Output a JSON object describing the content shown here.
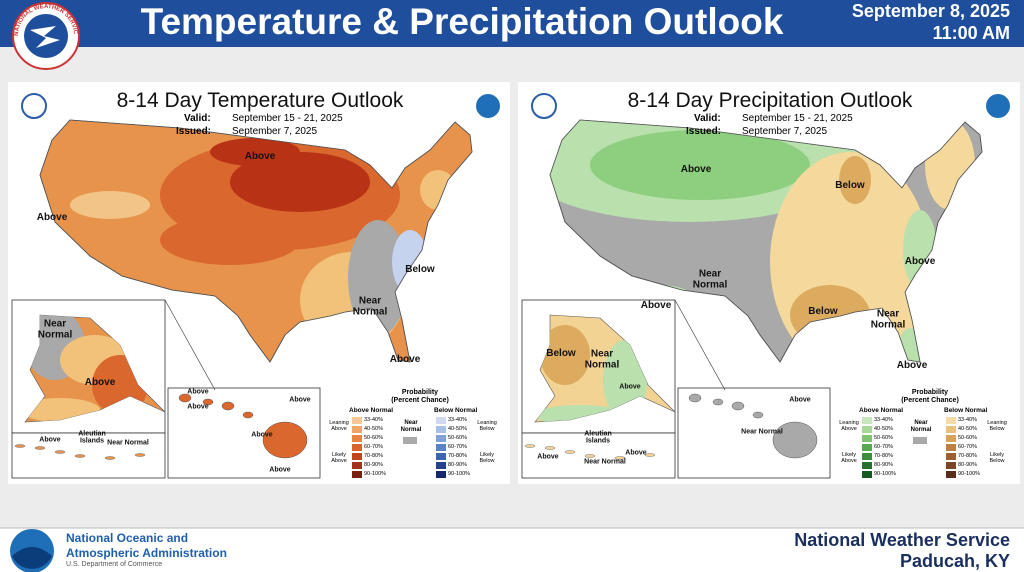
{
  "header": {
    "logo_text": "NATIONAL WEATHER SERVICE",
    "title": "Temperature & Precipitation Outlook",
    "date": "September 8, 2025",
    "time": "11:00 AM"
  },
  "maps": [
    {
      "title": "8-14 Day Temperature Outlook",
      "valid_label": "Valid:",
      "valid": "September 15 - 21, 2025",
      "issued_label": "Issued:",
      "issued": "September 7, 2025",
      "labels": [
        "Above",
        "Above",
        "Below",
        "Near Normal",
        "Above",
        "Near Normal",
        "Above",
        "Above",
        "Above",
        "Above",
        "Above",
        "Above",
        "Aleutian Islands",
        "Above",
        "Near Normal"
      ],
      "legend": {
        "title": "Probability (Percent Chance)",
        "above": "Above Normal",
        "below": "Below Normal",
        "near": "Near Normal",
        "leaning_above": "Leaning Above",
        "likely_above": "Likely Above",
        "leaning_below": "Leaning Below",
        "likely_below": "Likely Below",
        "ranges": [
          "33-40%",
          "40-50%",
          "50-60%",
          "60-70%",
          "70-80%",
          "80-90%",
          "90-100%"
        ]
      }
    },
    {
      "title": "8-14 Day Precipitation Outlook",
      "valid_label": "Valid:",
      "valid": "September 15 - 21, 2025",
      "issued_label": "Issued:",
      "issued": "September 7, 2025",
      "labels": [
        "Above",
        "Below",
        "Above",
        "Near Normal",
        "Above",
        "Below",
        "Near Normal",
        "Above",
        "Below",
        "Near Normal",
        "Above",
        "Above",
        "Near Normal",
        "Aleutian Islands",
        "Above",
        "Near Normal",
        "Above"
      ],
      "legend": {
        "title": "Probability (Percent Chance)",
        "above": "Above Normal",
        "below": "Below Normal",
        "near": "Near Normal",
        "leaning_above": "Leaning Above",
        "likely_above": "Likely Above",
        "leaning_below": "Leaning Below",
        "likely_below": "Likely Below",
        "ranges": [
          "33-40%",
          "40-50%",
          "50-60%",
          "60-70%",
          "70-80%",
          "80-90%",
          "90-100%"
        ]
      }
    }
  ],
  "footer": {
    "agency": "National Oceanic and Atmospheric Administration",
    "department": "U.S. Department of Commerce",
    "office": "National Weather Service",
    "location": "Paducah, KY"
  }
}
